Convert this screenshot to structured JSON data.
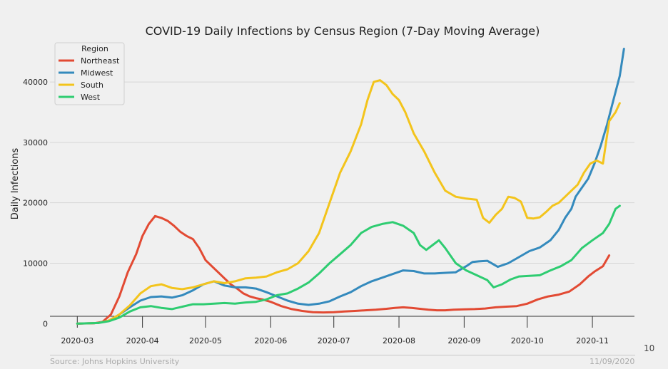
{
  "chart_data": {
    "type": "line",
    "title": "COVID-19 Daily Infections by Census Region (7-Day Moving Average)",
    "xlabel": "",
    "ylabel": "Daily Infections",
    "ylim": [
      -2800,
      46500
    ],
    "yticks": [
      0,
      10000,
      20000,
      30000,
      40000
    ],
    "xticks": [
      {
        "label": "2020-03",
        "day": 0
      },
      {
        "label": "2020-04",
        "day": 31
      },
      {
        "label": "2020-05",
        "day": 61
      },
      {
        "label": "2020-06",
        "day": 92
      },
      {
        "label": "2020-07",
        "day": 122
      },
      {
        "label": "2020-08",
        "day": 153
      },
      {
        "label": "2020-09",
        "day": 184
      },
      {
        "label": "2020-10",
        "day": 214
      },
      {
        "label": "2020-11",
        "day": 245
      }
    ],
    "xlim": [
      -13,
      265
    ],
    "legend": {
      "title": "Region",
      "position": "upper-left"
    },
    "series": [
      {
        "name": "Northeast",
        "color": "#e24a33",
        "points": [
          [
            0,
            0
          ],
          [
            8,
            50
          ],
          [
            12,
            300
          ],
          [
            16,
            1500
          ],
          [
            20,
            4500
          ],
          [
            24,
            8500
          ],
          [
            28,
            11500
          ],
          [
            31,
            14500
          ],
          [
            34,
            16500
          ],
          [
            37,
            17800
          ],
          [
            40,
            17500
          ],
          [
            43,
            17000
          ],
          [
            46,
            16200
          ],
          [
            49,
            15200
          ],
          [
            52,
            14500
          ],
          [
            55,
            14000
          ],
          [
            58,
            12500
          ],
          [
            61,
            10500
          ],
          [
            64,
            9500
          ],
          [
            67,
            8500
          ],
          [
            70,
            7500
          ],
          [
            73,
            6500
          ],
          [
            76,
            5800
          ],
          [
            79,
            5000
          ],
          [
            82,
            4500
          ],
          [
            85,
            4200
          ],
          [
            88,
            4000
          ],
          [
            92,
            3600
          ],
          [
            97,
            2900
          ],
          [
            102,
            2400
          ],
          [
            107,
            2100
          ],
          [
            112,
            1900
          ],
          [
            117,
            1850
          ],
          [
            122,
            1900
          ],
          [
            127,
            2000
          ],
          [
            132,
            2100
          ],
          [
            137,
            2200
          ],
          [
            142,
            2300
          ],
          [
            147,
            2450
          ],
          [
            151,
            2600
          ],
          [
            155,
            2700
          ],
          [
            159,
            2600
          ],
          [
            163,
            2450
          ],
          [
            167,
            2300
          ],
          [
            171,
            2200
          ],
          [
            175,
            2200
          ],
          [
            179,
            2300
          ],
          [
            184,
            2350
          ],
          [
            189,
            2400
          ],
          [
            194,
            2500
          ],
          [
            199,
            2700
          ],
          [
            204,
            2800
          ],
          [
            209,
            2900
          ],
          [
            214,
            3300
          ],
          [
            219,
            4000
          ],
          [
            224,
            4500
          ],
          [
            229,
            4800
          ],
          [
            234,
            5300
          ],
          [
            239,
            6500
          ],
          [
            243,
            7800
          ],
          [
            246,
            8600
          ],
          [
            250,
            9500
          ],
          [
            253,
            11300
          ]
        ]
      },
      {
        "name": "Midwest",
        "color": "#348abd",
        "points": [
          [
            0,
            0
          ],
          [
            10,
            100
          ],
          [
            15,
            500
          ],
          [
            20,
            1500
          ],
          [
            25,
            2700
          ],
          [
            30,
            3800
          ],
          [
            35,
            4400
          ],
          [
            40,
            4500
          ],
          [
            45,
            4300
          ],
          [
            50,
            4700
          ],
          [
            55,
            5500
          ],
          [
            60,
            6500
          ],
          [
            65,
            7000
          ],
          [
            70,
            6300
          ],
          [
            75,
            6000
          ],
          [
            80,
            6000
          ],
          [
            85,
            5800
          ],
          [
            90,
            5200
          ],
          [
            95,
            4500
          ],
          [
            100,
            3800
          ],
          [
            105,
            3300
          ],
          [
            110,
            3100
          ],
          [
            115,
            3300
          ],
          [
            120,
            3700
          ],
          [
            125,
            4500
          ],
          [
            130,
            5200
          ],
          [
            135,
            6200
          ],
          [
            140,
            7000
          ],
          [
            145,
            7600
          ],
          [
            150,
            8200
          ],
          [
            155,
            8800
          ],
          [
            160,
            8700
          ],
          [
            165,
            8300
          ],
          [
            170,
            8300
          ],
          [
            175,
            8400
          ],
          [
            180,
            8500
          ],
          [
            185,
            9500
          ],
          [
            188,
            10200
          ],
          [
            191,
            10300
          ],
          [
            195,
            10400
          ],
          [
            200,
            9400
          ],
          [
            205,
            10000
          ],
          [
            210,
            11000
          ],
          [
            215,
            12000
          ],
          [
            220,
            12600
          ],
          [
            225,
            13800
          ],
          [
            229,
            15500
          ],
          [
            232,
            17500
          ],
          [
            235,
            19000
          ],
          [
            237,
            21000
          ],
          [
            240,
            22500
          ],
          [
            243,
            24000
          ],
          [
            246,
            26500
          ],
          [
            249,
            29500
          ],
          [
            252,
            33000
          ],
          [
            255,
            37000
          ],
          [
            258,
            41000
          ],
          [
            260,
            45500
          ]
        ]
      },
      {
        "name": "South",
        "color": "#f3c41c",
        "points": [
          [
            0,
            0
          ],
          [
            10,
            100
          ],
          [
            15,
            500
          ],
          [
            20,
            1500
          ],
          [
            25,
            3000
          ],
          [
            30,
            5000
          ],
          [
            35,
            6200
          ],
          [
            40,
            6500
          ],
          [
            45,
            5900
          ],
          [
            50,
            5700
          ],
          [
            55,
            6000
          ],
          [
            60,
            6500
          ],
          [
            65,
            7000
          ],
          [
            70,
            6700
          ],
          [
            75,
            7000
          ],
          [
            80,
            7500
          ],
          [
            85,
            7600
          ],
          [
            90,
            7800
          ],
          [
            95,
            8500
          ],
          [
            100,
            9000
          ],
          [
            105,
            10000
          ],
          [
            110,
            12000
          ],
          [
            115,
            15000
          ],
          [
            120,
            20000
          ],
          [
            125,
            25000
          ],
          [
            130,
            28500
          ],
          [
            135,
            33000
          ],
          [
            138,
            37000
          ],
          [
            141,
            40000
          ],
          [
            144,
            40300
          ],
          [
            147,
            39500
          ],
          [
            150,
            38000
          ],
          [
            153,
            37000
          ],
          [
            156,
            35000
          ],
          [
            160,
            31500
          ],
          [
            165,
            28500
          ],
          [
            170,
            25000
          ],
          [
            175,
            22000
          ],
          [
            180,
            21000
          ],
          [
            185,
            20700
          ],
          [
            190,
            20500
          ],
          [
            193,
            17500
          ],
          [
            196,
            16700
          ],
          [
            199,
            18000
          ],
          [
            202,
            19000
          ],
          [
            205,
            21000
          ],
          [
            208,
            20800
          ],
          [
            211,
            20200
          ],
          [
            214,
            17500
          ],
          [
            217,
            17400
          ],
          [
            220,
            17600
          ],
          [
            223,
            18500
          ],
          [
            226,
            19500
          ],
          [
            229,
            20000
          ],
          [
            232,
            21000
          ],
          [
            235,
            22000
          ],
          [
            238,
            23000
          ],
          [
            241,
            25000
          ],
          [
            244,
            26500
          ],
          [
            247,
            27000
          ],
          [
            250,
            26500
          ],
          [
            253,
            33500
          ],
          [
            256,
            35000
          ],
          [
            258,
            36500
          ]
        ]
      },
      {
        "name": "West",
        "color": "#2ecc71",
        "points": [
          [
            0,
            0
          ],
          [
            10,
            100
          ],
          [
            15,
            400
          ],
          [
            20,
            1000
          ],
          [
            25,
            2000
          ],
          [
            30,
            2700
          ],
          [
            35,
            2900
          ],
          [
            40,
            2600
          ],
          [
            45,
            2400
          ],
          [
            50,
            2800
          ],
          [
            55,
            3200
          ],
          [
            60,
            3200
          ],
          [
            65,
            3300
          ],
          [
            70,
            3400
          ],
          [
            75,
            3300
          ],
          [
            80,
            3500
          ],
          [
            85,
            3600
          ],
          [
            90,
            4000
          ],
          [
            95,
            4700
          ],
          [
            100,
            5000
          ],
          [
            105,
            5800
          ],
          [
            110,
            6800
          ],
          [
            115,
            8300
          ],
          [
            120,
            10000
          ],
          [
            125,
            11500
          ],
          [
            130,
            13000
          ],
          [
            135,
            15000
          ],
          [
            140,
            16000
          ],
          [
            145,
            16500
          ],
          [
            150,
            16800
          ],
          [
            155,
            16200
          ],
          [
            160,
            15000
          ],
          [
            163,
            13000
          ],
          [
            166,
            12200
          ],
          [
            169,
            13000
          ],
          [
            172,
            13800
          ],
          [
            175,
            12500
          ],
          [
            180,
            10000
          ],
          [
            185,
            8800
          ],
          [
            190,
            8000
          ],
          [
            195,
            7200
          ],
          [
            198,
            6000
          ],
          [
            202,
            6500
          ],
          [
            206,
            7300
          ],
          [
            210,
            7800
          ],
          [
            215,
            7900
          ],
          [
            220,
            8000
          ],
          [
            225,
            8800
          ],
          [
            230,
            9500
          ],
          [
            235,
            10500
          ],
          [
            240,
            12500
          ],
          [
            245,
            13800
          ],
          [
            250,
            15000
          ],
          [
            253,
            16500
          ],
          [
            256,
            19000
          ],
          [
            258,
            19500
          ]
        ]
      }
    ]
  },
  "footer": {
    "source": "Source: Johns Hopkins University",
    "date": "11/09/2020",
    "page": "10"
  }
}
